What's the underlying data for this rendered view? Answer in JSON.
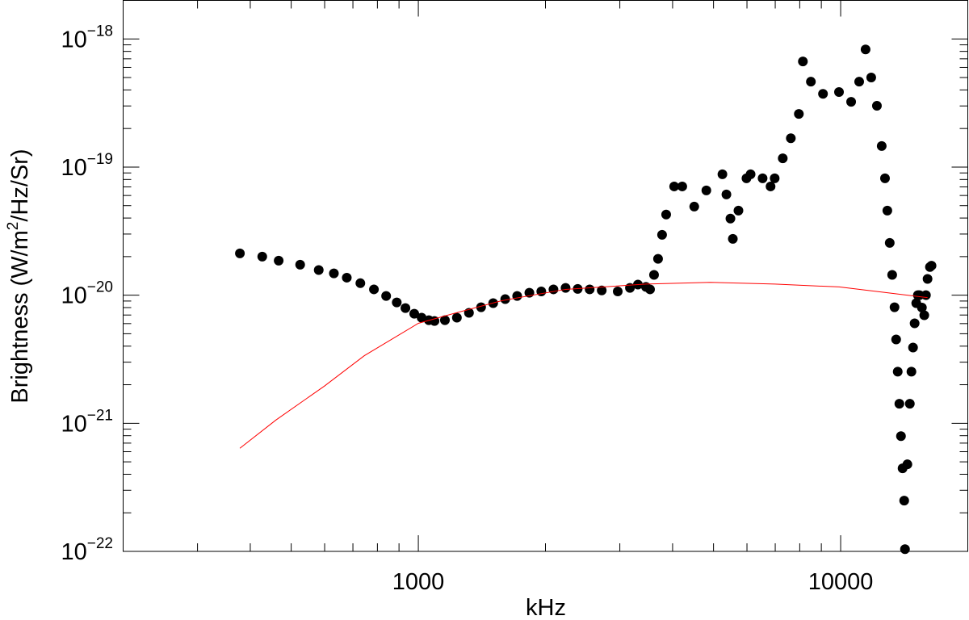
{
  "chart_data": {
    "type": "scatter",
    "xlabel": "kHz",
    "ylabel": "Brightness (W/m2/Hz/Sr)",
    "xscale": "log",
    "yscale": "log",
    "xlim": [
      200,
      20000
    ],
    "ylim": [
      1e-22,
      2e-18
    ],
    "xticks": [
      1000,
      10000
    ],
    "xminorticks": [
      300,
      400,
      500,
      600,
      700,
      800,
      900,
      2000,
      3000,
      4000,
      5000,
      6000,
      7000,
      8000,
      9000
    ],
    "yticks": [
      {
        "value": 1e-22,
        "label": "10−22"
      },
      {
        "value": 1e-21,
        "label": "10−21"
      },
      {
        "value": 1e-20,
        "label": "10−20"
      },
      {
        "value": 1e-19,
        "label": "10−19"
      },
      {
        "value": 1e-18,
        "label": "10−18"
      }
    ],
    "yminorticks": [
      2e-22,
      3e-22,
      4e-22,
      5e-22,
      6e-22,
      7e-22,
      8e-22,
      9e-22,
      2e-21,
      3e-21,
      4e-21,
      5e-21,
      6e-21,
      7e-21,
      8e-21,
      9e-21,
      2e-20,
      3e-20,
      4e-20,
      5e-20,
      6e-20,
      7e-20,
      8e-20,
      9e-20,
      2e-19,
      3e-19,
      4e-19,
      5e-19,
      6e-19,
      7e-19,
      8e-19,
      9e-19
    ],
    "series": [
      {
        "style": "markers",
        "color": "#000000",
        "x": [
          378,
          427,
          467,
          525,
          581,
          631,
          677,
          729,
          785,
          839,
          889,
          932,
          978,
          1018,
          1059,
          1092,
          1156,
          1234,
          1318,
          1408,
          1504,
          1606,
          1714,
          1832,
          1955,
          2089,
          2232,
          2384,
          2545,
          2718,
          2966,
          3170,
          3311,
          3459,
          3537,
          3615,
          3695,
          3777,
          3862,
          4035,
          4216,
          4501,
          4808,
          5248,
          5364,
          5483,
          5555,
          5728,
          5984,
          6120,
          6534,
          6824,
          6979,
          7293,
          7621,
          7962,
          8139,
          8502,
          9082,
          9910,
          10588,
          11062,
          11455,
          11813,
          12186,
          12508,
          12735,
          12898,
          13068,
          13243,
          13414,
          13532,
          13650,
          13772,
          13894,
          14016,
          14140,
          14202,
          14387,
          14581,
          14709,
          14838,
          14968,
          15100,
          15236,
          15370,
          15573,
          15776,
          15918,
          16059,
          16271,
          16411
        ],
        "values": [
          2.12e-20,
          2e-20,
          1.86e-20,
          1.73e-20,
          1.57e-20,
          1.48e-20,
          1.37e-20,
          1.24e-20,
          1.11e-20,
          9.86e-21,
          8.78e-21,
          7.93e-21,
          7.16e-21,
          6.67e-21,
          6.38e-21,
          6.29e-21,
          6.38e-21,
          6.67e-21,
          7.28e-21,
          8.05e-21,
          8.66e-21,
          9.31e-21,
          9.86e-21,
          1.045e-20,
          1.07e-20,
          1.11e-20,
          1.14e-20,
          1.12e-20,
          1.11e-20,
          1.09e-20,
          1.07e-20,
          1.14e-20,
          1.21e-20,
          1.16e-20,
          1.11e-20,
          1.44e-20,
          1.92e-20,
          2.96e-20,
          4.26e-20,
          7.06e-20,
          7.06e-20,
          4.92e-20,
          6.57e-20,
          8.78e-20,
          6.11e-20,
          3.96e-20,
          2.75e-20,
          4.57e-20,
          8.17e-20,
          8.78e-20,
          8.17e-20,
          7.06e-20,
          8.17e-20,
          1.17e-19,
          1.68e-19,
          2.6e-19,
          6.67e-19,
          4.64e-19,
          3.73e-19,
          3.85e-19,
          3.23e-19,
          4.64e-19,
          8.28e-19,
          5e-19,
          3.01e-19,
          1.46e-19,
          8.17e-20,
          4.57e-20,
          2.56e-20,
          1.44e-20,
          8.05e-21,
          4.51e-21,
          2.53e-21,
          1.42e-21,
          7.93e-22,
          4.45e-22,
          2.49e-22,
          1.04e-22,
          4.78e-22,
          1.42e-21,
          2.53e-21,
          3.9e-21,
          6.03e-21,
          8.66e-21,
          1e-20,
          1e-20,
          8e-21,
          6.97e-21,
          1e-20,
          1.34e-20,
          1.66e-20,
          1.7e-20
        ]
      },
      {
        "style": "line",
        "color": "#ff0000",
        "x": [
          378,
          460,
          599,
          745,
          1000,
          1207,
          1571,
          2232,
          3459,
          4914,
          6979,
          9910,
          12898,
          16059
        ],
        "values": [
          6.38e-22,
          1.06e-21,
          1.95e-21,
          3.37e-21,
          6.03e-21,
          7.16e-21,
          9.04e-21,
          1.11e-20,
          1.22e-20,
          1.26e-20,
          1.22e-20,
          1.16e-20,
          1.045e-20,
          9.57e-21
        ]
      }
    ]
  }
}
